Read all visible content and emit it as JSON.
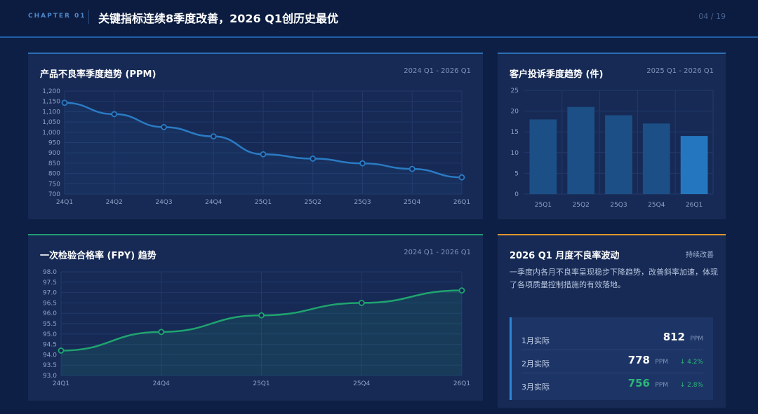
{
  "header": {
    "chapter": "CHAPTER 01",
    "title": "关键指标连续8季度改善，2026 Q1创历史最优",
    "page": "04 / 19"
  },
  "panels": {
    "ppm": {
      "title": "产品不良率季度趋势 (PPM)",
      "range": "2024 Q1 - 2026 Q1"
    },
    "complaints": {
      "title": "客户投诉季度趋势 (件)",
      "range": "2025 Q1 - 2026 Q1"
    },
    "fpy": {
      "title": "一次检验合格率 (FPY) 趋势",
      "range": "2024 Q1 - 2026 Q1"
    },
    "monthly": {
      "title": "2026 Q1 月度不良率波动",
      "tag": "持续改善",
      "description": "一季度内各月不良率呈现稳步下降趋势，改善斜率加速，体现了各项质量控制措施的有效落地。",
      "rows": [
        {
          "label": "1月实际",
          "value": "812",
          "unit": "PPM",
          "delta": ""
        },
        {
          "label": "2月实际",
          "value": "778",
          "unit": "PPM",
          "delta": "↓ 4.2%"
        },
        {
          "label": "3月实际",
          "value": "756",
          "unit": "PPM",
          "delta": "↓ 2.8%"
        }
      ]
    }
  },
  "colors": {
    "line_blue": "#2a7bc4",
    "line_green": "#1fa46f",
    "bar": "#1d4f87",
    "bar_highlight": "#2477bf",
    "accent_green": "#2bb779",
    "accent_orange": "#e0962c"
  },
  "chart_data": [
    {
      "type": "line",
      "title": "产品不良率季度趋势 (PPM)",
      "categories": [
        "24Q1",
        "24Q2",
        "24Q3",
        "24Q4",
        "25Q1",
        "25Q2",
        "25Q3",
        "25Q4",
        "26Q1"
      ],
      "values": [
        1143,
        1088,
        1025,
        980,
        893,
        872,
        849,
        822,
        781
      ],
      "ylim": [
        700,
        1200
      ],
      "yticks": [
        "700",
        "750",
        "800",
        "850",
        "900",
        "950",
        "1,000",
        "1,050",
        "1,100",
        "1,150",
        "1,200"
      ],
      "grid": true
    },
    {
      "type": "bar",
      "title": "客户投诉季度趋势 (件)",
      "categories": [
        "25Q1",
        "25Q2",
        "25Q3",
        "25Q4",
        "26Q1"
      ],
      "values": [
        18,
        21,
        19,
        17,
        14
      ],
      "ylim": [
        0,
        25
      ],
      "yticks": [
        "0",
        "5",
        "10",
        "15",
        "20",
        "25"
      ],
      "grid": true
    },
    {
      "type": "area",
      "title": "一次检验合格率 (FPY) 趋势",
      "categories": [
        "24Q1",
        "24Q4",
        "25Q1",
        "25Q4",
        "26Q1"
      ],
      "values": [
        94.2,
        95.1,
        95.9,
        96.5,
        97.1
      ],
      "ylim": [
        93.0,
        98.0
      ],
      "yticks": [
        "93.0",
        "93.5",
        "94.0",
        "94.5",
        "95.0",
        "95.5",
        "96.0",
        "96.5",
        "97.0",
        "97.5",
        "98.0"
      ],
      "grid": true
    }
  ]
}
